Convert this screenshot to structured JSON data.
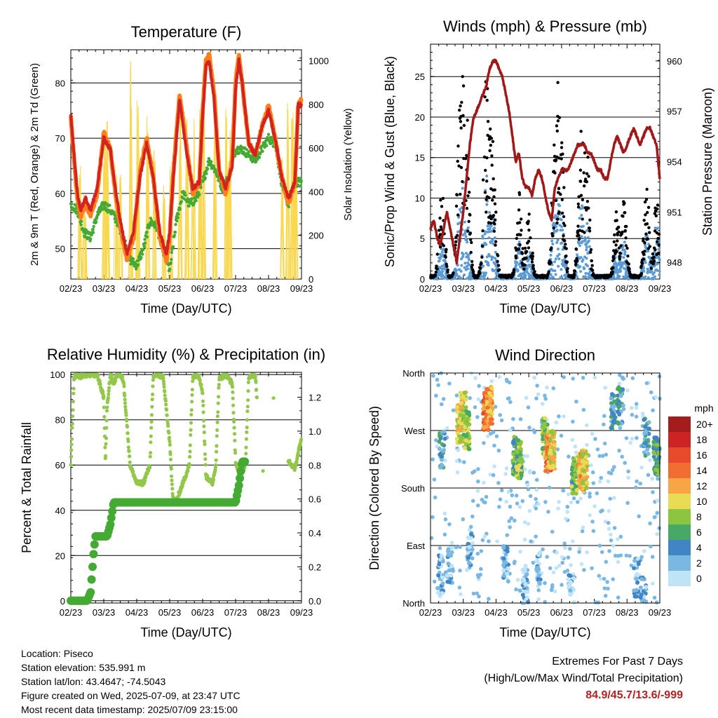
{
  "colors": {
    "temp_2m": "#ff7f1a",
    "temp_9m": "#d22222",
    "dewpoint": "#44aa33",
    "solar": "#f8d850",
    "wind": "#5b9bd5",
    "gust": "#000000",
    "pressure": "#a01818",
    "rh": "#93c74b",
    "rain": "#44aa33"
  },
  "chart_data": [
    {
      "type": "line",
      "title": "Temperature (F)",
      "xlabel": "Time (Day/UTC)",
      "ylabel": "2m & 9m T (Red, Orange) & 2m Td (Green)",
      "y2label": "Solar Insolation (Yellow)",
      "x_ticks": [
        "02/23",
        "03/23",
        "04/23",
        "05/23",
        "06/23",
        "07/23",
        "08/23",
        "09/23"
      ],
      "y_ticks": [
        50,
        60,
        70,
        80
      ],
      "y2_ticks": [
        0,
        200,
        400,
        600,
        800,
        1000
      ],
      "xlim": [
        0,
        7
      ],
      "ylim": [
        44.5,
        86
      ],
      "y2lim": [
        0,
        1050
      ],
      "grid": "horizontal",
      "series": [
        {
          "name": "2m T",
          "color_key": "temp_2m",
          "x": [
            0,
            0.1,
            0.2,
            0.3,
            0.45,
            0.6,
            0.8,
            1.0,
            1.2,
            1.35,
            1.5,
            1.7,
            1.9,
            2.1,
            2.3,
            2.5,
            2.7,
            2.9,
            3.0,
            3.1,
            3.3,
            3.5,
            3.7,
            3.9,
            4.0,
            4.1,
            4.2,
            4.35,
            4.5,
            4.7,
            4.9,
            5.0,
            5.1,
            5.2,
            5.4,
            5.6,
            5.8,
            6.0,
            6.2,
            6.4,
            6.6,
            6.8,
            6.9,
            7.0
          ],
          "y": [
            74,
            66,
            59,
            56,
            58,
            56,
            60,
            71,
            68,
            60,
            54,
            48,
            52,
            64,
            70,
            63,
            52,
            48,
            52,
            63,
            78,
            69,
            60,
            62,
            75,
            84,
            85,
            78,
            64,
            60,
            66,
            80,
            85,
            80,
            69,
            67,
            72,
            76,
            70,
            63,
            58,
            62,
            76,
            77
          ]
        },
        {
          "name": "9m T",
          "color_key": "temp_9m",
          "x": [
            0,
            0.1,
            0.2,
            0.3,
            0.45,
            0.6,
            0.8,
            1.0,
            1.2,
            1.35,
            1.5,
            1.7,
            1.9,
            2.1,
            2.3,
            2.5,
            2.7,
            2.9,
            3.0,
            3.1,
            3.3,
            3.5,
            3.7,
            3.9,
            4.0,
            4.1,
            4.2,
            4.35,
            4.5,
            4.7,
            4.9,
            5.0,
            5.1,
            5.2,
            5.4,
            5.6,
            5.8,
            6.0,
            6.2,
            6.4,
            6.6,
            6.8,
            6.9,
            7.0
          ],
          "y": [
            74,
            67,
            60,
            57,
            59,
            57,
            61,
            70,
            68,
            61,
            55,
            49,
            53,
            63,
            69,
            63,
            53,
            49,
            53,
            62,
            77,
            68,
            61,
            62,
            74,
            83,
            84,
            77,
            64,
            61,
            65,
            79,
            84,
            80,
            69,
            67,
            72,
            75,
            70,
            63,
            59,
            62,
            76,
            76
          ]
        },
        {
          "name": "2m Td",
          "color_key": "dewpoint",
          "x": [
            0,
            0.2,
            0.4,
            0.6,
            0.8,
            1.0,
            1.2,
            1.4,
            1.6,
            1.8,
            2.0,
            2.2,
            2.4,
            2.6,
            2.8,
            3.0,
            3.2,
            3.4,
            3.6,
            3.8,
            4.0,
            4.2,
            4.4,
            4.6,
            4.8,
            5.0,
            5.2,
            5.4,
            5.6,
            5.8,
            6.0,
            6.2,
            6.4,
            6.6,
            6.8,
            7.0
          ],
          "y": [
            58,
            57,
            53,
            52,
            56,
            58,
            57,
            55,
            52,
            48,
            47,
            50,
            55,
            54,
            50,
            46,
            55,
            60,
            58,
            59,
            62,
            66,
            64,
            61,
            63,
            68,
            68,
            67,
            66,
            68,
            70,
            69,
            62,
            58,
            62,
            62
          ]
        },
        {
          "name": "Solar Insolation",
          "color_key": "solar",
          "axis": "y2",
          "peaks_x": [
            0.3,
            0.45,
            1.05,
            1.15,
            1.4,
            1.55,
            1.85,
            2.05,
            2.35,
            2.55,
            2.85,
            3.05,
            3.35,
            3.55,
            3.75,
            3.95,
            4.05,
            4.4,
            4.75,
            4.85,
            6.45,
            6.6,
            6.75,
            6.85
          ],
          "peaks_y": [
            550,
            420,
            900,
            850,
            620,
            580,
            1000,
            880,
            800,
            700,
            650,
            520,
            950,
            900,
            750,
            820,
            870,
            800,
            820,
            760,
            650,
            900,
            1020,
            850
          ]
        }
      ]
    },
    {
      "type": "scatter",
      "title": "Winds (mph) & Pressure (mb)",
      "xlabel": "Time (Day/UTC)",
      "ylabel": "Sonic/Prop Wind & Gust (Blue, Black)",
      "y2label": "Station Pressure (Maroon)",
      "x_ticks": [
        "02/23",
        "03/23",
        "04/23",
        "05/23",
        "06/23",
        "07/23",
        "08/23",
        "09/23"
      ],
      "y_ticks": [
        0,
        5,
        10,
        15,
        20,
        25
      ],
      "y2_ticks": [
        948,
        951,
        954,
        957,
        960
      ],
      "xlim": [
        0,
        7
      ],
      "ylim": [
        0,
        29
      ],
      "y2lim": [
        947,
        961
      ],
      "grid": "horizontal",
      "gust_peaks": {
        "x": [
          0.35,
          0.9,
          1.0,
          1.1,
          1.7,
          1.8,
          1.9,
          2.7,
          3.0,
          3.8,
          3.9,
          4.0,
          4.6,
          4.75,
          5.7,
          5.9,
          6.6,
          6.9
        ],
        "y": [
          12,
          22,
          26.5,
          21,
          26.5,
          20,
          20,
          11,
          9,
          20,
          25,
          17,
          21,
          20,
          9,
          10,
          12,
          10
        ]
      },
      "wind_peaks": {
        "x": [
          0.35,
          0.9,
          1.0,
          1.1,
          1.7,
          1.8,
          1.9,
          2.7,
          3.0,
          3.8,
          3.9,
          4.0,
          4.6,
          4.75,
          5.7,
          5.9,
          6.6,
          6.9
        ],
        "y": [
          5,
          9,
          12,
          8,
          13,
          9,
          8,
          5,
          4,
          10,
          12,
          8,
          11,
          9,
          4,
          5,
          6,
          7
        ]
      },
      "pressure": {
        "x": [
          0,
          0.1,
          0.2,
          0.3,
          0.4,
          0.5,
          0.6,
          0.7,
          0.8,
          0.9,
          1.0,
          1.1,
          1.2,
          1.3,
          1.4,
          1.5,
          1.6,
          1.7,
          1.8,
          1.9,
          2.0,
          2.1,
          2.2,
          2.3,
          2.4,
          2.5,
          2.6,
          2.7,
          2.8,
          2.9,
          3.0,
          3.1,
          3.2,
          3.3,
          3.4,
          3.5,
          3.6,
          3.7,
          3.8,
          3.9,
          4.0,
          4.1,
          4.2,
          4.3,
          4.4,
          4.5,
          4.6,
          4.7,
          4.8,
          4.9,
          5.0,
          5.1,
          5.2,
          5.3,
          5.4,
          5.5,
          5.6,
          5.7,
          5.8,
          5.9,
          6.0,
          6.1,
          6.2,
          6.3,
          6.4,
          6.5,
          6.6,
          6.7,
          6.8,
          6.9,
          7.0
        ],
        "y": [
          950,
          950.5,
          949.5,
          949,
          950,
          951,
          950,
          949,
          948,
          949.5,
          951,
          953,
          955,
          956.5,
          957,
          957.5,
          958,
          958.5,
          959.5,
          960,
          960,
          959.5,
          959,
          958,
          957,
          955.5,
          954,
          954.5,
          953,
          952.5,
          952.5,
          952,
          953,
          953.5,
          953,
          952,
          951,
          950.5,
          952.5,
          953,
          953.5,
          953.5,
          953.5,
          954,
          954.5,
          955,
          955,
          955,
          954.5,
          954.5,
          954,
          953.5,
          953.5,
          953,
          953,
          954,
          955,
          955.5,
          955,
          954.5,
          955,
          955.5,
          956,
          955.5,
          955,
          955.5,
          956,
          956,
          955.5,
          955,
          953
        ]
      }
    },
    {
      "type": "scatter",
      "title": "Relative Humidity (%) & Precipitation (in)",
      "xlabel": "Time (Day/UTC)",
      "ylabel": "Percent & Total Rainfall",
      "x_ticks": [
        "02/23",
        "03/23",
        "04/23",
        "05/23",
        "06/23",
        "07/23",
        "08/23",
        "09/23"
      ],
      "y_ticks": [
        0,
        20,
        40,
        60,
        80,
        100
      ],
      "y2_ticks": [
        "0.0",
        "0.2",
        "0.4",
        "0.6",
        "0.8",
        "1.0",
        "1.2"
      ],
      "xlim": [
        0,
        7
      ],
      "ylim": [
        -1,
        101
      ],
      "y2lim": [
        -0.0133,
        1.3467
      ],
      "grid": "horizontal",
      "rh": {
        "x": [
          0,
          0.1,
          0.2,
          0.3,
          0.5,
          0.8,
          1.0,
          1.05,
          1.1,
          1.2,
          1.3,
          1.4,
          1.5,
          1.6,
          1.8,
          2.0,
          2.2,
          2.4,
          2.5,
          2.6,
          2.8,
          3.0,
          3.1,
          3.2,
          3.4,
          3.6,
          3.7,
          3.8,
          3.9,
          4.0,
          4.1,
          4.3,
          4.4,
          4.5,
          4.7,
          4.9,
          5.0,
          5.1,
          5.3,
          5.4,
          5.5,
          5.6,
          5.8,
          6.0,
          6.2,
          6.4,
          6.5,
          6.6,
          6.8,
          7.0
        ],
        "y": [
          60,
          99,
          100,
          99,
          100,
          100,
          90,
          62,
          85,
          100,
          96,
          100,
          100,
          97,
          60,
          52,
          52,
          60,
          99,
          100,
          99,
          70,
          45,
          44,
          52,
          60,
          99,
          100,
          99,
          92,
          55,
          52,
          60,
          98,
          100,
          96,
          62,
          55,
          60,
          99,
          100,
          99,
          58,
          60,
          99,
          100,
          99,
          62,
          58,
          72
        ]
      },
      "rain": {
        "x": [
          0,
          0.3,
          0.5,
          0.6,
          0.7,
          0.75,
          0.8,
          1.0,
          1.1,
          1.2,
          1.3,
          1.4,
          1.6,
          2.0,
          3.0,
          4.0,
          4.5,
          5.0,
          5.1,
          5.2,
          5.3
        ],
        "y_in": [
          0,
          0,
          0,
          0.05,
          0.3,
          0.38,
          0.38,
          0.38,
          0.38,
          0.45,
          0.58,
          0.58,
          0.58,
          0.58,
          0.58,
          0.58,
          0.58,
          0.58,
          0.68,
          0.82,
          0.82
        ]
      }
    },
    {
      "type": "scatter",
      "title": "Wind Direction",
      "xlabel": "Time (Day/UTC)",
      "ylabel": "Direction (Colored By Speed)",
      "x_ticks": [
        "02/23",
        "03/23",
        "04/23",
        "05/23",
        "06/23",
        "07/23",
        "08/23",
        "09/23"
      ],
      "y_ticks": [
        "North",
        "East",
        "South",
        "West",
        "North"
      ],
      "xlim": [
        0,
        7
      ],
      "ylim": [
        0,
        360
      ],
      "grid": "horizontal",
      "legend": {
        "title": "mph",
        "labels": [
          "20+",
          "18",
          "16",
          "14",
          "12",
          "10",
          "8",
          "6",
          "4",
          "2",
          "0"
        ],
        "colors": [
          "#a51c1c",
          "#cc2424",
          "#e64a2a",
          "#f26d31",
          "#f7a545",
          "#e8dc55",
          "#8cc640",
          "#48a866",
          "#4285c4",
          "#7ab8e4",
          "#bfe4f7"
        ],
        "position": "right"
      },
      "clusters": [
        {
          "x": 0.3,
          "dir": 45,
          "speed": 2
        },
        {
          "x": 0.35,
          "dir": 240,
          "speed": 4
        },
        {
          "x": 0.9,
          "dir": 280,
          "speed": 10
        },
        {
          "x": 1.0,
          "dir": 300,
          "speed": 10
        },
        {
          "x": 1.1,
          "dir": 270,
          "speed": 8
        },
        {
          "x": 1.7,
          "dir": 300,
          "speed": 14
        },
        {
          "x": 1.8,
          "dir": 310,
          "speed": 12
        },
        {
          "x": 2.6,
          "dir": 230,
          "speed": 6
        },
        {
          "x": 2.7,
          "dir": 225,
          "speed": 7
        },
        {
          "x": 3.5,
          "dir": 260,
          "speed": 8
        },
        {
          "x": 3.6,
          "dir": 235,
          "speed": 14
        },
        {
          "x": 3.7,
          "dir": 240,
          "speed": 10
        },
        {
          "x": 4.4,
          "dir": 200,
          "speed": 7
        },
        {
          "x": 4.6,
          "dir": 205,
          "speed": 12
        },
        {
          "x": 4.7,
          "dir": 210,
          "speed": 10
        },
        {
          "x": 5.6,
          "dir": 300,
          "speed": 4
        },
        {
          "x": 5.8,
          "dir": 310,
          "speed": 4
        },
        {
          "x": 6.6,
          "dir": 260,
          "speed": 4
        },
        {
          "x": 6.9,
          "dir": 230,
          "speed": 6
        },
        {
          "x": 0.6,
          "dir": 60,
          "speed": 2
        },
        {
          "x": 1.2,
          "dir": 80,
          "speed": 2
        },
        {
          "x": 2.3,
          "dir": 60,
          "speed": 2
        },
        {
          "x": 2.9,
          "dir": 30,
          "speed": 1
        },
        {
          "x": 3.3,
          "dir": 50,
          "speed": 1
        },
        {
          "x": 4.3,
          "dir": 20,
          "speed": 1
        },
        {
          "x": 6.3,
          "dir": 40,
          "speed": 2
        },
        {
          "x": 6.5,
          "dir": 10,
          "speed": 2
        }
      ]
    }
  ],
  "station": {
    "location": "Location: Piseco",
    "elevation": "Station elevation: 535.991 m",
    "latlon": "Station lat/lon: 43.4647; -74.5043",
    "created": "Figure created on Wed, 2025-07-09, at 23:47 UTC",
    "recent": "Most recent data timestamp: 2025/07/09 23:15:00"
  },
  "extremes": {
    "title": "Extremes For Past 7 Days",
    "subtitle": "(High/Low/Max Wind/Total Precipitation)",
    "values": "84.9/45.7/13.6/-999"
  }
}
